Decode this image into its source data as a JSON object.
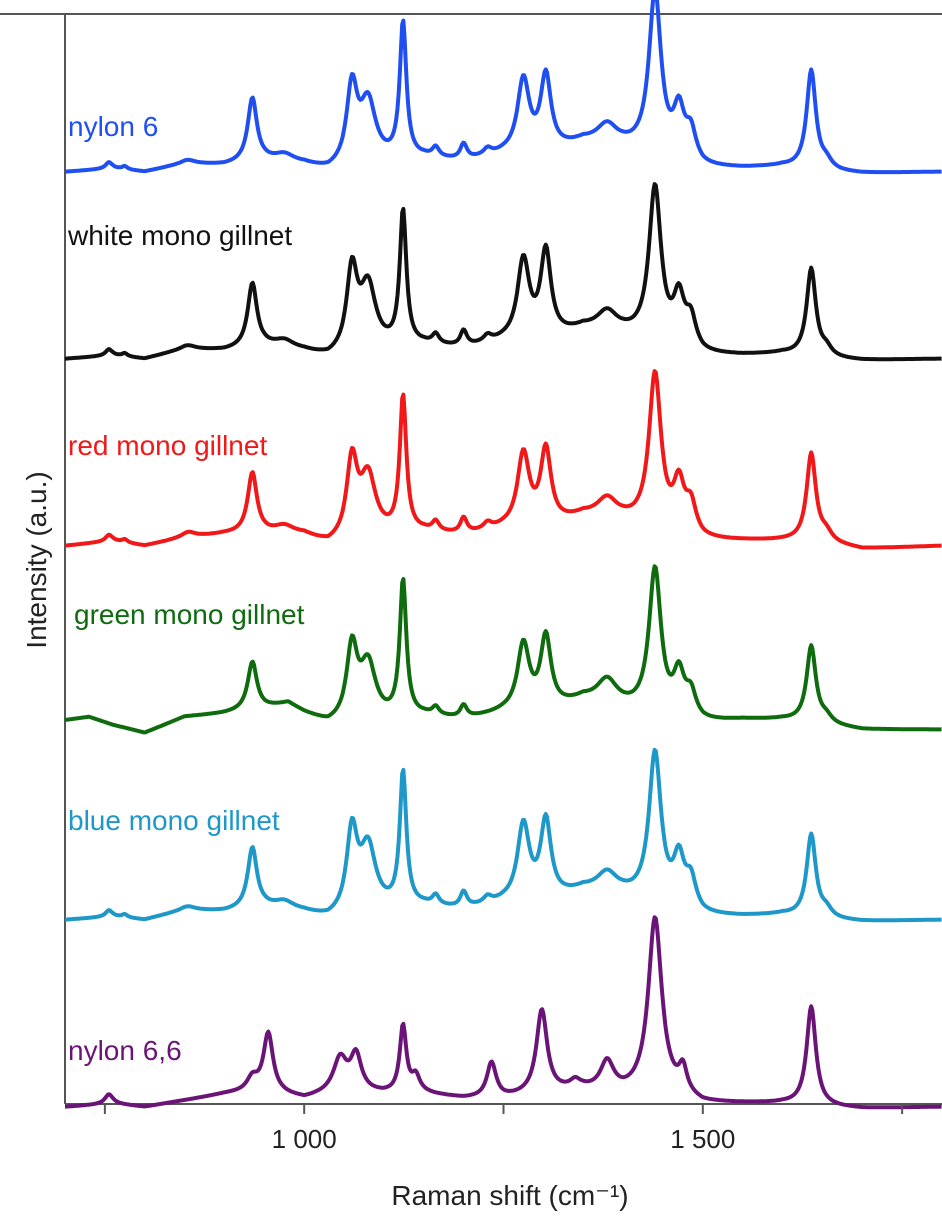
{
  "chart_data": {
    "type": "line",
    "title": "",
    "xlabel": "Raman shift (cm⁻¹)",
    "ylabel": "Intensity (a.u.)",
    "xlim": [
      700,
      1800
    ],
    "x_ticks": [
      {
        "value": 750,
        "label": ""
      },
      {
        "value": 1000,
        "label": "1 000"
      },
      {
        "value": 1250,
        "label": ""
      },
      {
        "value": 1500,
        "label": "1 500"
      },
      {
        "value": 1750,
        "label": ""
      }
    ],
    "stacked": true,
    "grid": false,
    "legend": "inline labels beside each trace",
    "series": [
      {
        "name": "nylon 6",
        "color": "#1f4ff0",
        "offset": 0,
        "baseline": [
          [
            700,
            0.0
          ],
          [
            760,
            0.02
          ],
          [
            800,
            0.0
          ],
          [
            850,
            0.05
          ],
          [
            900,
            0.04
          ],
          [
            950,
            0.06
          ],
          [
            1000,
            0.04
          ],
          [
            1030,
            0.0
          ],
          [
            1100,
            0.05
          ],
          [
            1150,
            0.08
          ],
          [
            1200,
            0.06
          ],
          [
            1250,
            0.1
          ],
          [
            1300,
            0.1
          ],
          [
            1350,
            0.18
          ],
          [
            1400,
            0.15
          ],
          [
            1450,
            0.1
          ],
          [
            1500,
            0.02
          ],
          [
            1550,
            0.02
          ],
          [
            1600,
            0.03
          ],
          [
            1650,
            0.0
          ],
          [
            1700,
            -0.01
          ],
          [
            1800,
            0.0
          ]
        ],
        "peaks": [
          [
            755,
            0.04,
            5
          ],
          [
            775,
            0.02,
            4
          ],
          [
            855,
            0.02,
            10
          ],
          [
            935,
            0.4,
            7
          ],
          [
            975,
            0.05,
            15
          ],
          [
            1060,
            0.48,
            8
          ],
          [
            1080,
            0.38,
            12
          ],
          [
            1124,
            0.85,
            5
          ],
          [
            1165,
            0.06,
            5
          ],
          [
            1200,
            0.1,
            5
          ],
          [
            1230,
            0.04,
            6
          ],
          [
            1275,
            0.46,
            9
          ],
          [
            1303,
            0.48,
            8
          ],
          [
            1380,
            0.12,
            15
          ],
          [
            1440,
            1.0,
            9
          ],
          [
            1470,
            0.28,
            8
          ],
          [
            1485,
            0.18,
            8
          ],
          [
            1636,
            0.62,
            7
          ],
          [
            1655,
            0.05,
            8
          ]
        ]
      },
      {
        "name": "white mono gillnet",
        "color": "#111111",
        "offset": 1,
        "baseline": [
          [
            700,
            0.0
          ],
          [
            760,
            0.02
          ],
          [
            800,
            0.0
          ],
          [
            850,
            0.06
          ],
          [
            900,
            0.05
          ],
          [
            950,
            0.07
          ],
          [
            1000,
            0.04
          ],
          [
            1030,
            0.0
          ],
          [
            1100,
            0.05
          ],
          [
            1150,
            0.08
          ],
          [
            1200,
            0.06
          ],
          [
            1250,
            0.1
          ],
          [
            1300,
            0.1
          ],
          [
            1350,
            0.18
          ],
          [
            1400,
            0.15
          ],
          [
            1450,
            0.1
          ],
          [
            1500,
            0.02
          ],
          [
            1550,
            0.02
          ],
          [
            1600,
            0.03
          ],
          [
            1650,
            0.0
          ],
          [
            1700,
            -0.01
          ],
          [
            1800,
            0.0
          ]
        ],
        "peaks": [
          [
            755,
            0.04,
            5
          ],
          [
            775,
            0.02,
            4
          ],
          [
            855,
            0.02,
            10
          ],
          [
            935,
            0.4,
            7
          ],
          [
            975,
            0.05,
            15
          ],
          [
            1060,
            0.5,
            8
          ],
          [
            1080,
            0.4,
            12
          ],
          [
            1124,
            0.84,
            5
          ],
          [
            1165,
            0.06,
            5
          ],
          [
            1200,
            0.1,
            5
          ],
          [
            1230,
            0.04,
            6
          ],
          [
            1275,
            0.5,
            9
          ],
          [
            1303,
            0.55,
            8
          ],
          [
            1380,
            0.12,
            15
          ],
          [
            1440,
            0.95,
            9
          ],
          [
            1470,
            0.28,
            8
          ],
          [
            1485,
            0.18,
            8
          ],
          [
            1636,
            0.55,
            7
          ],
          [
            1655,
            0.05,
            8
          ]
        ]
      },
      {
        "name": "red mono gillnet",
        "color": "#f01818",
        "offset": 2,
        "baseline": [
          [
            700,
            0.0
          ],
          [
            760,
            0.03
          ],
          [
            800,
            0.0
          ],
          [
            850,
            0.05
          ],
          [
            900,
            0.07
          ],
          [
            950,
            0.07
          ],
          [
            1000,
            0.06
          ],
          [
            1030,
            0.0
          ],
          [
            1100,
            0.05
          ],
          [
            1150,
            0.08
          ],
          [
            1200,
            0.06
          ],
          [
            1250,
            0.1
          ],
          [
            1300,
            0.1
          ],
          [
            1350,
            0.18
          ],
          [
            1400,
            0.15
          ],
          [
            1450,
            0.1
          ],
          [
            1500,
            0.03
          ],
          [
            1550,
            0.03
          ],
          [
            1600,
            0.03
          ],
          [
            1650,
            0.02
          ],
          [
            1700,
            -0.02
          ],
          [
            1800,
            0.0
          ]
        ],
        "peaks": [
          [
            755,
            0.04,
            5
          ],
          [
            775,
            0.02,
            4
          ],
          [
            855,
            0.03,
            10
          ],
          [
            935,
            0.38,
            7
          ],
          [
            975,
            0.05,
            15
          ],
          [
            1060,
            0.48,
            8
          ],
          [
            1080,
            0.38,
            12
          ],
          [
            1124,
            0.85,
            5
          ],
          [
            1165,
            0.06,
            5
          ],
          [
            1200,
            0.1,
            5
          ],
          [
            1230,
            0.04,
            6
          ],
          [
            1275,
            0.46,
            9
          ],
          [
            1303,
            0.48,
            8
          ],
          [
            1380,
            0.12,
            15
          ],
          [
            1440,
            0.95,
            9
          ],
          [
            1470,
            0.28,
            8
          ],
          [
            1485,
            0.18,
            8
          ],
          [
            1636,
            0.55,
            7
          ],
          [
            1655,
            0.05,
            8
          ]
        ]
      },
      {
        "name": "green mono gillnet",
        "color": "#0e6b0e",
        "offset": 3,
        "baseline": [
          [
            700,
            0.08
          ],
          [
            730,
            0.1
          ],
          [
            760,
            0.05
          ],
          [
            800,
            0.0
          ],
          [
            850,
            0.1
          ],
          [
            900,
            0.12
          ],
          [
            950,
            0.15
          ],
          [
            980,
            0.18
          ],
          [
            1000,
            0.12
          ],
          [
            1030,
            0.05
          ],
          [
            1100,
            0.07
          ],
          [
            1150,
            0.1
          ],
          [
            1200,
            0.08
          ],
          [
            1250,
            0.12
          ],
          [
            1300,
            0.12
          ],
          [
            1350,
            0.2
          ],
          [
            1400,
            0.15
          ],
          [
            1450,
            0.1
          ],
          [
            1500,
            0.06
          ],
          [
            1550,
            0.08
          ],
          [
            1600,
            0.08
          ],
          [
            1650,
            0.05
          ],
          [
            1700,
            0.02
          ],
          [
            1800,
            0.02
          ]
        ],
        "peaks": [
          [
            935,
            0.3,
            7
          ],
          [
            1060,
            0.45,
            8
          ],
          [
            1080,
            0.35,
            12
          ],
          [
            1124,
            0.85,
            5
          ],
          [
            1165,
            0.05,
            5
          ],
          [
            1200,
            0.08,
            5
          ],
          [
            1275,
            0.42,
            9
          ],
          [
            1303,
            0.46,
            8
          ],
          [
            1380,
            0.15,
            15
          ],
          [
            1440,
            0.9,
            9
          ],
          [
            1470,
            0.25,
            8
          ],
          [
            1485,
            0.15,
            8
          ],
          [
            1636,
            0.48,
            7
          ],
          [
            1655,
            0.04,
            8
          ]
        ]
      },
      {
        "name": "blue mono gillnet",
        "color": "#1e98c8",
        "offset": 4,
        "baseline": [
          [
            700,
            0.0
          ],
          [
            760,
            0.02
          ],
          [
            800,
            0.0
          ],
          [
            850,
            0.06
          ],
          [
            900,
            0.05
          ],
          [
            950,
            0.07
          ],
          [
            1000,
            0.04
          ],
          [
            1030,
            0.0
          ],
          [
            1100,
            0.05
          ],
          [
            1150,
            0.08
          ],
          [
            1200,
            0.06
          ],
          [
            1250,
            0.1
          ],
          [
            1300,
            0.1
          ],
          [
            1350,
            0.18
          ],
          [
            1400,
            0.15
          ],
          [
            1450,
            0.1
          ],
          [
            1500,
            0.02
          ],
          [
            1550,
            0.02
          ],
          [
            1600,
            0.03
          ],
          [
            1650,
            0.0
          ],
          [
            1700,
            -0.01
          ],
          [
            1800,
            0.0
          ]
        ],
        "peaks": [
          [
            755,
            0.04,
            5
          ],
          [
            775,
            0.02,
            4
          ],
          [
            855,
            0.02,
            10
          ],
          [
            935,
            0.38,
            7
          ],
          [
            975,
            0.05,
            15
          ],
          [
            1060,
            0.5,
            8
          ],
          [
            1080,
            0.4,
            12
          ],
          [
            1124,
            0.84,
            5
          ],
          [
            1165,
            0.06,
            5
          ],
          [
            1200,
            0.1,
            5
          ],
          [
            1230,
            0.04,
            6
          ],
          [
            1275,
            0.48,
            9
          ],
          [
            1303,
            0.5,
            8
          ],
          [
            1380,
            0.12,
            15
          ],
          [
            1440,
            0.92,
            9
          ],
          [
            1470,
            0.28,
            8
          ],
          [
            1485,
            0.18,
            8
          ],
          [
            1636,
            0.52,
            7
          ],
          [
            1655,
            0.05,
            8
          ]
        ]
      },
      {
        "name": "nylon 6,6",
        "color": "#6b1478",
        "offset": 5,
        "baseline": [
          [
            700,
            0.0
          ],
          [
            760,
            0.02
          ],
          [
            800,
            0.0
          ],
          [
            850,
            0.04
          ],
          [
            900,
            0.08
          ],
          [
            950,
            0.1
          ],
          [
            1000,
            0.05
          ],
          [
            1050,
            0.1
          ],
          [
            1100,
            0.08
          ],
          [
            1150,
            0.08
          ],
          [
            1200,
            0.05
          ],
          [
            1250,
            0.05
          ],
          [
            1300,
            0.08
          ],
          [
            1350,
            0.1
          ],
          [
            1400,
            0.08
          ],
          [
            1450,
            0.1
          ],
          [
            1500,
            0.02
          ],
          [
            1550,
            0.02
          ],
          [
            1600,
            0.02
          ],
          [
            1650,
            0.0
          ],
          [
            1700,
            -0.01
          ],
          [
            1800,
            0.0
          ]
        ],
        "peaks": [
          [
            755,
            0.06,
            6
          ],
          [
            935,
            0.08,
            8
          ],
          [
            955,
            0.36,
            7
          ],
          [
            1045,
            0.2,
            10
          ],
          [
            1065,
            0.22,
            8
          ],
          [
            1124,
            0.42,
            5
          ],
          [
            1140,
            0.1,
            6
          ],
          [
            1235,
            0.22,
            7
          ],
          [
            1298,
            0.52,
            8
          ],
          [
            1340,
            0.05,
            8
          ],
          [
            1380,
            0.18,
            10
          ],
          [
            1440,
            1.08,
            10
          ],
          [
            1475,
            0.15,
            6
          ],
          [
            1636,
            0.62,
            7
          ]
        ]
      }
    ]
  }
}
